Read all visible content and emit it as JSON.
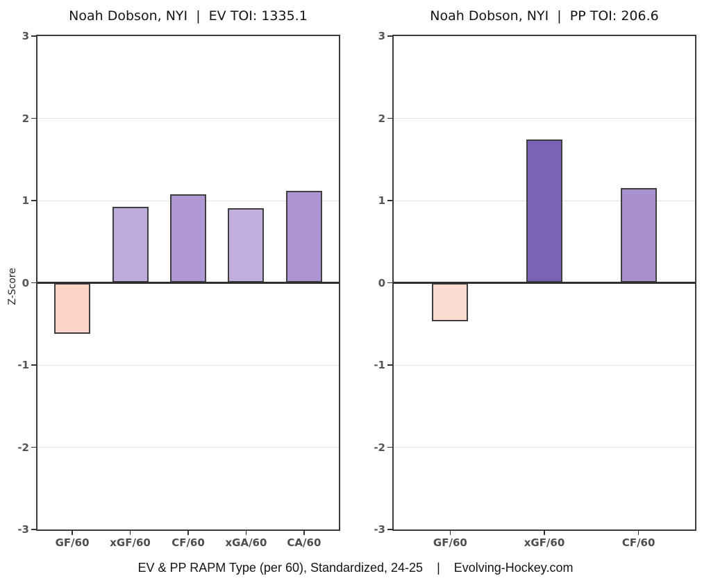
{
  "figure": {
    "caption": "EV & PP RAPM Type (per 60), Standardized, 24-25    |    Evolving-Hockey.com"
  },
  "chart_data": [
    {
      "type": "bar",
      "title": "Noah Dobson, NYI  |  EV TOI: 1335.1",
      "player": "Noah Dobson",
      "team": "NYI",
      "strength": "EV",
      "toi": 1335.1,
      "categories": [
        "GF/60",
        "xGF/60",
        "CF/60",
        "xGA/60",
        "CA/60"
      ],
      "values": [
        -0.62,
        0.92,
        1.08,
        0.91,
        1.12
      ],
      "bar_colors": [
        "#fcd4c8",
        "#c0acdc",
        "#ae97d3",
        "#c1aedd",
        "#ab94d1"
      ],
      "xlabel": "",
      "ylabel": "Z-Score",
      "ylim": [
        -3,
        3
      ],
      "yticks": [
        3,
        2,
        1,
        0,
        -1,
        -2,
        -3
      ],
      "grid": true,
      "legend": "none"
    },
    {
      "type": "bar",
      "title": "Noah Dobson, NYI  |  PP TOI: 206.6",
      "player": "Noah Dobson",
      "team": "NYI",
      "strength": "PP",
      "toi": 206.6,
      "categories": [
        "GF/60",
        "xGF/60",
        "CF/60"
      ],
      "values": [
        -0.47,
        1.74,
        1.15
      ],
      "bar_colors": [
        "#fcdcd2",
        "#7c62b5",
        "#a991d0"
      ],
      "xlabel": "",
      "ylabel": "",
      "ylim": [
        -3,
        3
      ],
      "yticks": [
        3,
        2,
        1,
        0,
        -1,
        -2,
        -3
      ],
      "grid": true,
      "legend": "none"
    }
  ],
  "style": {
    "background": "#ffffff",
    "panel_border": "#3a3a3a",
    "zero_line": "#2e2e2e",
    "gridline": "#e3e3e3",
    "tick_mark": "#333333",
    "y_tick_label": "#555555",
    "x_tick_label": "#4d4d4d",
    "title_color": "#141414",
    "bar_edge": "#3f3f3f"
  }
}
